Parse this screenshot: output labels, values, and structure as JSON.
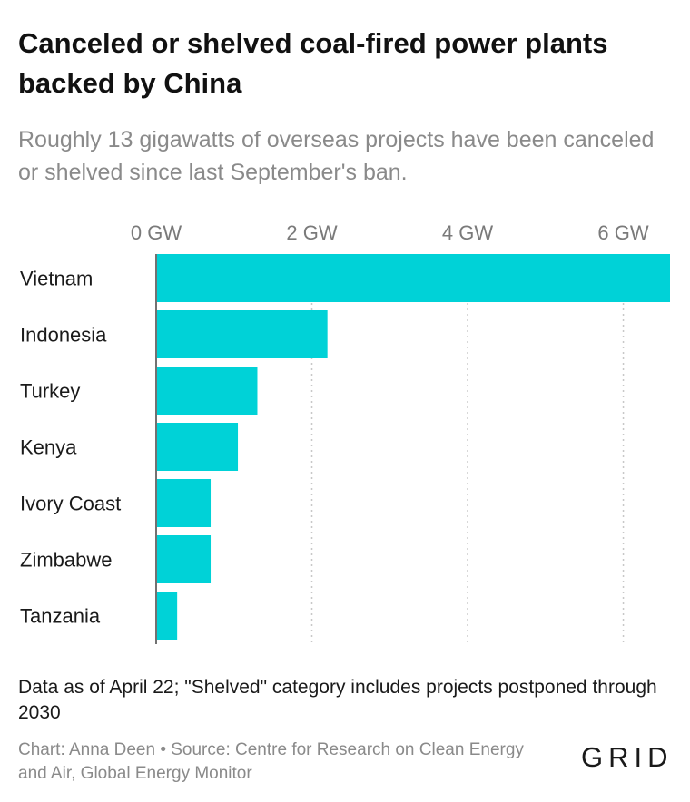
{
  "title": "Canceled or shelved coal-fired power plants backed by China",
  "subtitle": "Roughly 13 gigawatts of overseas projects have been canceled or shelved since last September's ban.",
  "note": "Data as of April 22; \"Shelved\" category includes projects postponed through 2030",
  "credit": "Chart: Anna Deen • Source: Centre for Research on Clean Energy and Air, Global Energy Monitor",
  "logo": "GRID",
  "colors": {
    "bar": "#00d2d7",
    "grid": "#c8c8c8"
  },
  "chart_data": {
    "type": "bar",
    "orientation": "horizontal",
    "title": "Canceled or shelved coal-fired power plants backed by China",
    "subtitle": "Roughly 13 gigawatts of overseas projects have been canceled or shelved since last September's ban.",
    "categories": [
      "Vietnam",
      "Indonesia",
      "Turkey",
      "Kenya",
      "Ivory Coast",
      "Zimbabwe",
      "Tanzania"
    ],
    "values": [
      6.6,
      2.2,
      1.3,
      1.05,
      0.7,
      0.7,
      0.27
    ],
    "unit": "GW",
    "ticks": [
      0,
      2,
      4,
      6
    ],
    "tick_labels": [
      "0 GW",
      "2 GW",
      "4 GW",
      "6 GW"
    ],
    "xlim": [
      0,
      6.6
    ],
    "grid": true,
    "legend": "none"
  }
}
